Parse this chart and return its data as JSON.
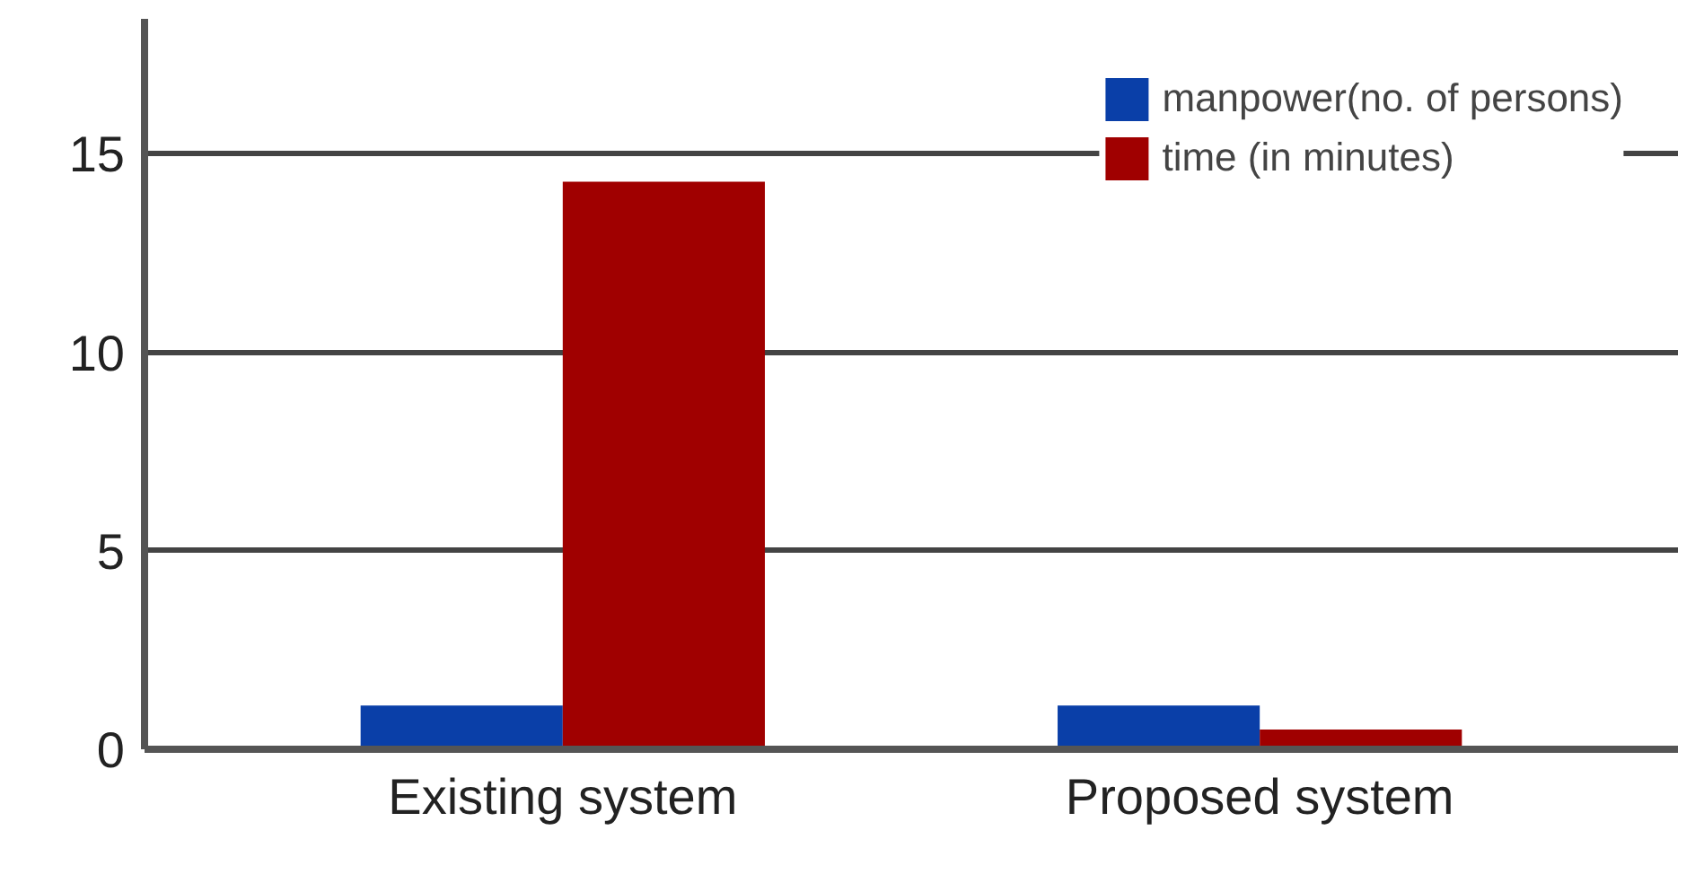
{
  "chart_data": {
    "type": "bar",
    "categories": [
      "Existing system",
      "Proposed system"
    ],
    "series": [
      {
        "name": "manpower(no. of persons)",
        "color": "#0a3fa8",
        "values": [
          1.1,
          1.1
        ]
      },
      {
        "name": "time (in minutes)",
        "color": "#a00000",
        "values": [
          14.3,
          0.5
        ]
      }
    ],
    "ylim": [
      0,
      18.4
    ],
    "yticks": [
      0,
      5,
      10,
      15
    ],
    "grid": "y",
    "legend": "top right"
  }
}
